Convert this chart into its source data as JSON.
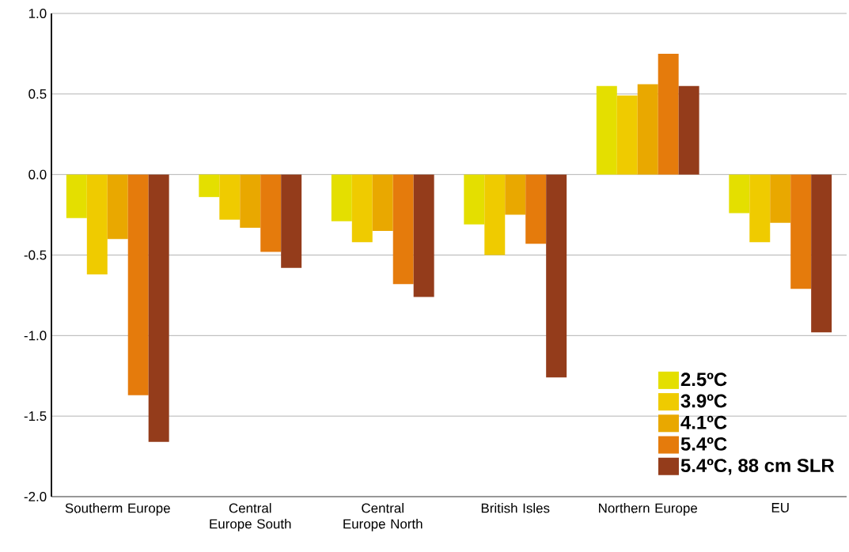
{
  "chart_data": {
    "type": "bar",
    "categories": [
      "Southerm Europe",
      "Central Europe South",
      "Central Europe North",
      "British Isles",
      "Northern Europe",
      "EU"
    ],
    "series": [
      {
        "name": "2.5ºC",
        "color": "#e4df00",
        "values": [
          -0.27,
          -0.14,
          -0.29,
          -0.31,
          0.55,
          -0.24
        ]
      },
      {
        "name": "3.9ºC",
        "color": "#efcb00",
        "values": [
          -0.62,
          -0.28,
          -0.42,
          -0.5,
          0.49,
          -0.42
        ]
      },
      {
        "name": "4.1ºC",
        "color": "#e9a800",
        "values": [
          -0.4,
          -0.33,
          -0.35,
          -0.25,
          0.56,
          -0.3
        ]
      },
      {
        "name": "5.4ºC",
        "color": "#e57b0c",
        "values": [
          -1.37,
          -0.48,
          -0.68,
          -0.43,
          0.75,
          -0.71
        ]
      },
      {
        "name": "5.4ºC, 88 cm SLR",
        "color": "#943c1b",
        "values": [
          -1.66,
          -0.58,
          -0.76,
          -1.26,
          0.55,
          -0.98
        ]
      }
    ],
    "ylim": [
      -2,
      1
    ],
    "yticks": [
      {
        "value": -2,
        "label": "-2.0"
      },
      {
        "value": -1.5,
        "label": "-1.5"
      },
      {
        "value": -1,
        "label": "-1.0"
      },
      {
        "value": -0.5,
        "label": "-0.5"
      },
      {
        "value": 0,
        "label": "0.0"
      },
      {
        "value": 0.5,
        "label": "0.5"
      },
      {
        "value": 1,
        "label": "1.0"
      }
    ],
    "grid": "y",
    "legend": "bottom right"
  }
}
